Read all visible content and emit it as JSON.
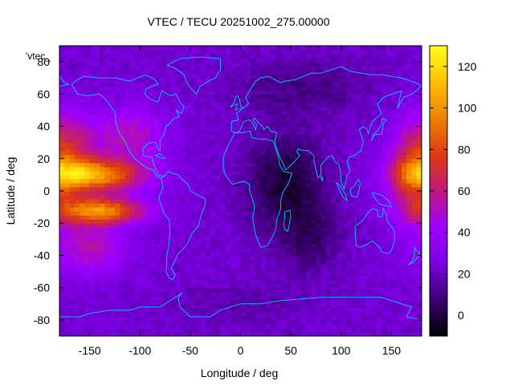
{
  "chart_data": {
    "type": "heatmap",
    "title": "VTEC / TECU 20251002_275.00000",
    "xlabel": "Longitude / deg",
    "ylabel": "Latitude / deg",
    "xlim": [
      -180,
      180
    ],
    "ylim": [
      -90,
      90
    ],
    "x_ticks": [
      -150,
      -100,
      -50,
      0,
      50,
      100,
      150
    ],
    "y_ticks": [
      -80,
      -60,
      -40,
      -20,
      0,
      20,
      40,
      60,
      80
    ],
    "colorbar": {
      "range": [
        -10,
        130
      ],
      "ticks": [
        0,
        20,
        40,
        60,
        80,
        100,
        120
      ],
      "palette": [
        "#000000",
        "#3a0070",
        "#7a00e0",
        "#a000ff",
        "#c01880",
        "#dc3a10",
        "#f08000",
        "#ffc000",
        "#ffff20"
      ]
    },
    "legend_label": "'vtec_",
    "overlay": "coastlines",
    "overlay_color": "#00c8ff",
    "cell_size_deg": [
      5,
      2.5
    ],
    "features": [
      {
        "lon": -145,
        "lat": 10,
        "slon": 35,
        "slat": 7,
        "amp": 75
      },
      {
        "lon": -140,
        "lat": -12,
        "slon": 32,
        "slat": 6,
        "amp": 72
      },
      {
        "lon": -110,
        "lat": 35,
        "slon": 25,
        "slat": 12,
        "amp": 30
      },
      {
        "lon": -170,
        "lat": 25,
        "slon": 20,
        "slat": 18,
        "amp": 35
      },
      {
        "lon": -150,
        "lat": -35,
        "slon": 25,
        "slat": 12,
        "amp": 30
      },
      {
        "lon": 170,
        "lat": 10,
        "slon": 18,
        "slat": 20,
        "amp": 35
      },
      {
        "lon": 45,
        "lat": 5,
        "slon": 28,
        "slat": 22,
        "amp": -25
      },
      {
        "lon": 70,
        "lat": -30,
        "slon": 22,
        "slat": 15,
        "amp": -14
      },
      {
        "lon": 60,
        "lat": 65,
        "slon": 50,
        "slat": 12,
        "amp": -12
      },
      {
        "lon": 0,
        "lat": -70,
        "slon": 50,
        "slat": 10,
        "amp": -6
      }
    ],
    "base_value": 23
  }
}
